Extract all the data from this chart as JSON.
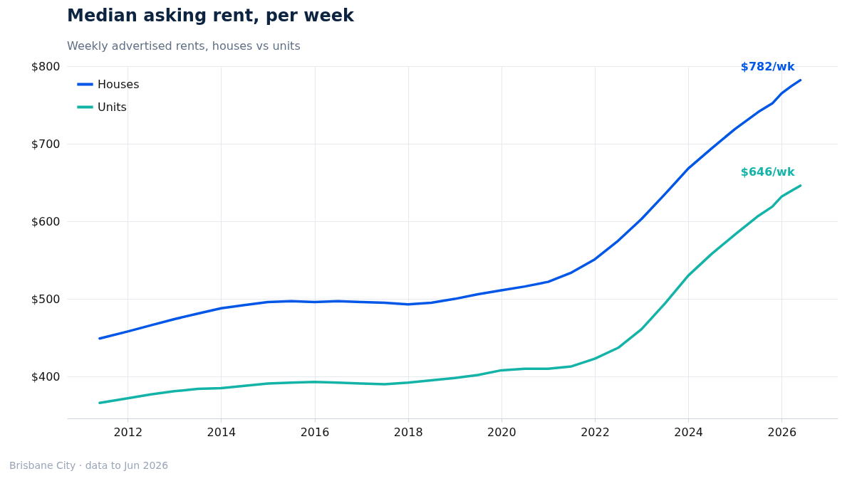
{
  "chart_data": {
    "type": "line",
    "title": "Median asking rent, per week",
    "subtitle": "Weekly advertised rents, houses vs units",
    "x": [
      2011.4,
      2012,
      2012.5,
      2013,
      2013.5,
      2014,
      2014.5,
      2015,
      2015.5,
      2016,
      2016.5,
      2017,
      2017.5,
      2018,
      2018.5,
      2019,
      2019.5,
      2020,
      2020.5,
      2021,
      2021.5,
      2022,
      2022.5,
      2023,
      2023.5,
      2024,
      2024.5,
      2025,
      2025.5,
      2025.8,
      2026,
      2026.2,
      2026.4
    ],
    "series": [
      {
        "name": "Houses",
        "color": "#0057e7",
        "values": [
          449,
          458,
          466,
          474,
          481,
          488,
          492,
          496,
          497,
          496,
          497,
          496,
          495,
          493,
          495,
          500,
          506,
          511,
          516,
          522,
          534,
          551,
          575,
          603,
          635,
          668,
          694,
          719,
          741,
          752,
          765,
          774,
          782
        ]
      },
      {
        "name": "Units",
        "color": "#14b3a8",
        "values": [
          366,
          372,
          377,
          381,
          384,
          385,
          388,
          391,
          392,
          393,
          392,
          391,
          390,
          392,
          395,
          398,
          402,
          408,
          410,
          410,
          413,
          423,
          437,
          461,
          494,
          530,
          558,
          583,
          607,
          619,
          632,
          639,
          646
        ]
      }
    ],
    "xlim": [
      2010.7,
      2027.2
    ],
    "xticks": [
      2012,
      2014,
      2016,
      2018,
      2020,
      2022,
      2024,
      2026
    ],
    "ylim": [
      346,
      800
    ],
    "yticks": [
      {
        "value": 400,
        "label": "$400"
      },
      {
        "value": 500,
        "label": "$500"
      },
      {
        "value": 600,
        "label": "$600"
      },
      {
        "value": 700,
        "label": "$700"
      },
      {
        "value": 800,
        "label": "$800"
      }
    ],
    "grid": true,
    "legend": "top left",
    "marker": "none",
    "line_style": "solid",
    "annotations": [
      {
        "text": "$782/wk",
        "x": 2026.4,
        "y": 782
      },
      {
        "text": "$646/wk",
        "x": 2026.4,
        "y": 646
      },
      "Brisbane City  ·  data to Jun 2026"
    ]
  }
}
